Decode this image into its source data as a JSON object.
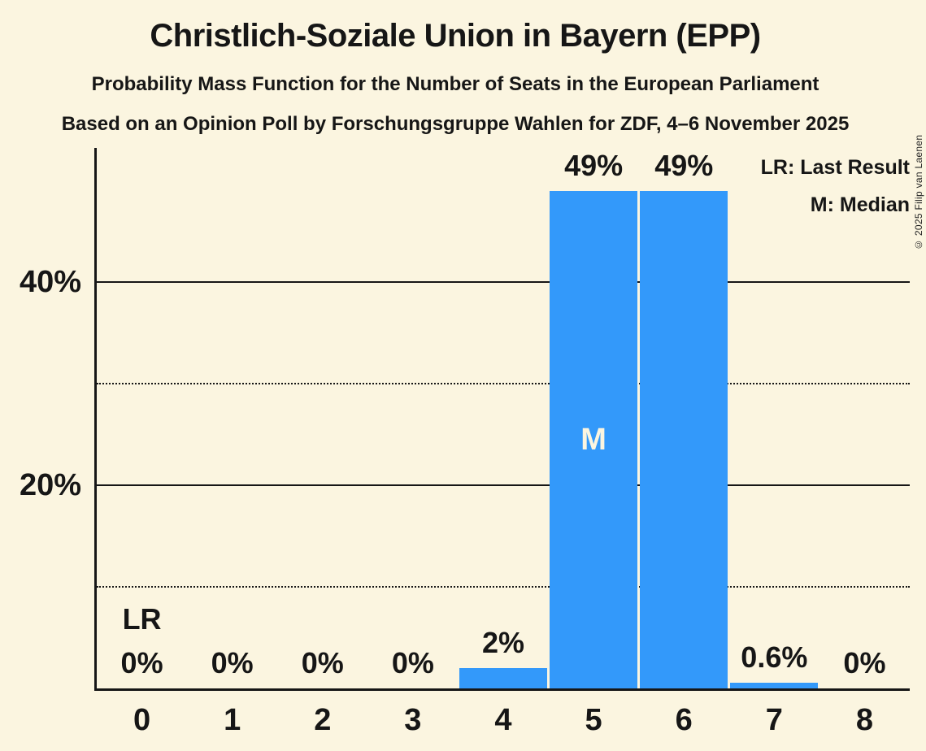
{
  "chart_data": {
    "type": "bar",
    "title": "Christlich-Soziale Union in Bayern (EPP)",
    "subtitle": "Probability Mass Function for the Number of Seats in the European Parliament",
    "source_line": "Based on an Opinion Poll by Forschungsgruppe Wahlen for ZDF, 4–6 November 2025",
    "xlabel": "",
    "ylabel": "",
    "categories": [
      "0",
      "1",
      "2",
      "3",
      "4",
      "5",
      "6",
      "7",
      "8"
    ],
    "values": [
      0,
      0,
      0,
      0,
      2,
      49,
      49,
      0.6,
      0
    ],
    "bar_labels": [
      "0%",
      "0%",
      "0%",
      "0%",
      "2%",
      "49%",
      "49%",
      "0.6%",
      "0%"
    ],
    "ylim": [
      0,
      53.2
    ],
    "yticks": [
      {
        "value": 10,
        "label": "",
        "style": "dotted"
      },
      {
        "value": 20,
        "label": "20%",
        "style": "solid"
      },
      {
        "value": 30,
        "label": "",
        "style": "dotted"
      },
      {
        "value": 40,
        "label": "40%",
        "style": "solid"
      }
    ],
    "grid": true,
    "legend_position": "top-right",
    "median_index": 5,
    "median_marker": "M",
    "last_result_index": 0,
    "last_result_marker": "LR"
  },
  "legend": {
    "lr": "LR: Last Result",
    "m": "M: Median"
  },
  "copyright": "© 2025 Filip van Laenen",
  "colors": {
    "background": "#FBF5E0",
    "bar": "#3399FA",
    "text": "#161616",
    "marker_inside_bar": "#FBF5E0"
  }
}
